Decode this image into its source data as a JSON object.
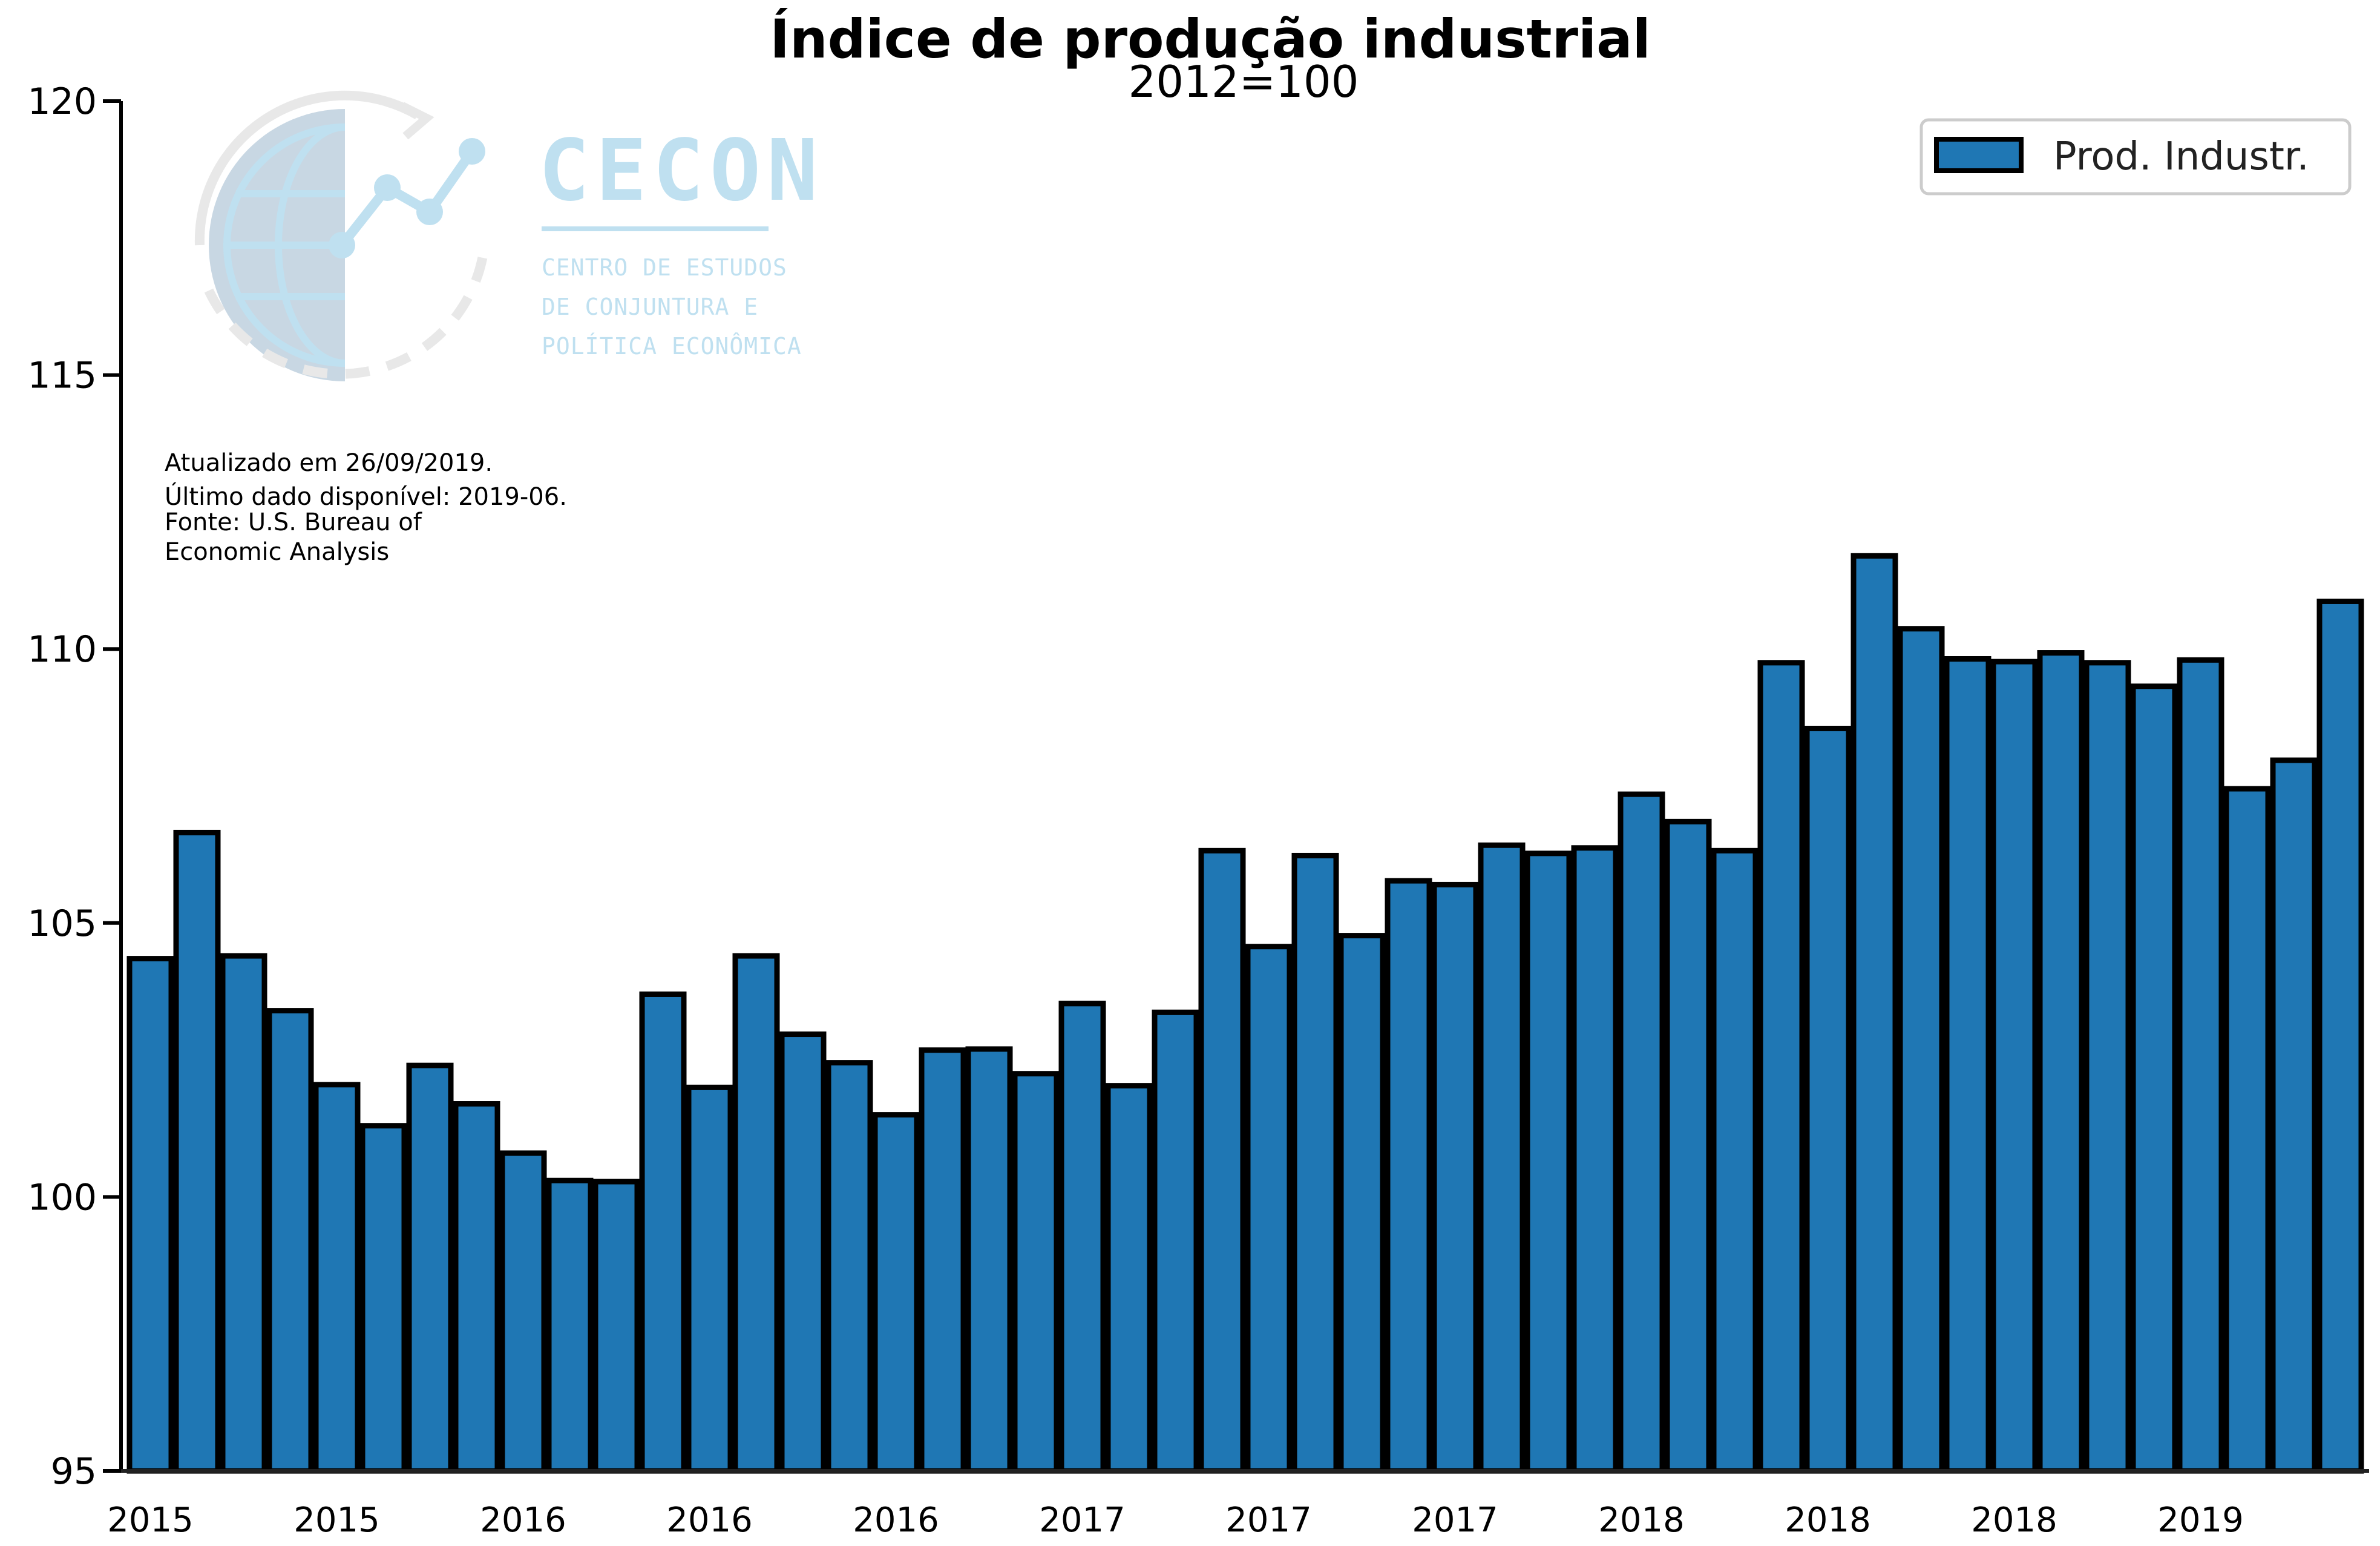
{
  "chart_data": {
    "type": "bar",
    "title": "Índice de produção industrial",
    "subtitle": "2012=100",
    "ylim": [
      95,
      120
    ],
    "yticks": [
      95,
      100,
      105,
      110,
      115,
      120
    ],
    "xtick_labels": [
      "2015",
      "2015",
      "2016",
      "2016",
      "2016",
      "2017",
      "2017",
      "2017",
      "2018",
      "2018",
      "2018",
      "2019"
    ],
    "xtick_every": 4,
    "grid": false,
    "legend_position": "top-right",
    "bar_color": "#1f77b4",
    "edge_color": "#000000",
    "series": [
      {
        "name": "Prod. Industr.",
        "values": [
          104.35,
          106.65,
          104.4,
          103.4,
          102.05,
          101.3,
          102.4,
          101.7,
          100.8,
          100.3,
          100.28,
          103.7,
          102.0,
          104.4,
          102.97,
          102.45,
          101.5,
          102.68,
          102.7,
          102.25,
          103.53,
          102.03,
          103.37,
          106.32,
          104.57,
          106.23,
          104.77,
          105.77,
          105.7,
          106.42,
          106.27,
          106.37,
          107.35,
          106.85,
          106.32,
          109.75,
          108.55,
          111.7,
          110.37,
          109.82,
          109.77,
          109.93,
          109.75,
          109.32,
          109.8,
          107.45,
          107.97,
          110.87
        ]
      }
    ],
    "annotations": [
      "Atualizado em 26/09/2019.",
      "Último dado disponível: 2019-06.",
      "Fonte: U.S. Bureau of",
      "Economic Analysis"
    ]
  },
  "logo": {
    "name": "CECON",
    "line1": "CENTRO DE ESTUDOS",
    "line2": "DE CONJUNTURA E",
    "line3": "POLÍTICA ECONÔMICA"
  }
}
